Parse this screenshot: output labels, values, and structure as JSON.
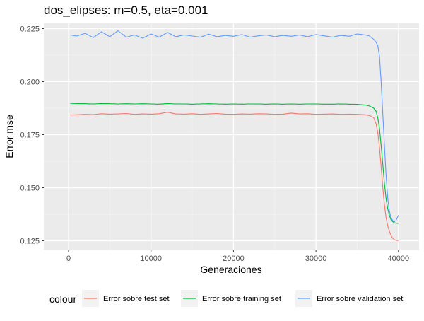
{
  "chart_data": {
    "type": "line",
    "title": "dos_elipses: m=0.5, eta=0.001",
    "xlabel": "Generaciones",
    "ylabel": "Error mse",
    "xlim": [
      -3000,
      42500
    ],
    "ylim": [
      0.1205,
      0.2275
    ],
    "x_ticks": [
      0,
      10000,
      20000,
      30000,
      40000
    ],
    "x_tick_labels": [
      "0",
      "10000",
      "20000",
      "30000",
      "40000"
    ],
    "y_ticks": [
      0.125,
      0.15,
      0.175,
      0.2,
      0.225
    ],
    "y_tick_labels": [
      "0.125",
      "0.150",
      "0.175",
      "0.200",
      "0.225"
    ],
    "grid": true,
    "legend_position": "bottom",
    "legend_title": "colour",
    "x": [
      200,
      1000,
      2000,
      3000,
      4000,
      5000,
      6000,
      7000,
      8000,
      9000,
      10000,
      11000,
      12000,
      13000,
      14000,
      15000,
      16000,
      17000,
      18000,
      19000,
      20000,
      21000,
      22000,
      23000,
      24000,
      25000,
      26000,
      27000,
      28000,
      29000,
      30000,
      31000,
      32000,
      33000,
      34000,
      35000,
      36000,
      36500,
      37000,
      37300,
      37500,
      37700,
      37900,
      38100,
      38300,
      38500,
      38700,
      38900,
      39100,
      39300,
      39500,
      39700,
      40000
    ],
    "series": [
      {
        "name": "Error sobre test set",
        "color": "#F8766D",
        "values": [
          0.1843,
          0.1844,
          0.1846,
          0.1845,
          0.1849,
          0.1847,
          0.1848,
          0.185,
          0.1846,
          0.1848,
          0.1847,
          0.1849,
          0.1856,
          0.1848,
          0.1847,
          0.1849,
          0.1846,
          0.1848,
          0.185,
          0.1847,
          0.1846,
          0.1848,
          0.1847,
          0.1849,
          0.1848,
          0.1846,
          0.1847,
          0.1852,
          0.1848,
          0.1849,
          0.1846,
          0.1847,
          0.1848,
          0.1846,
          0.1847,
          0.1846,
          0.1844,
          0.184,
          0.183,
          0.18,
          0.176,
          0.169,
          0.16,
          0.15,
          0.142,
          0.136,
          0.132,
          0.1295,
          0.1275,
          0.1262,
          0.1255,
          0.1252,
          0.1251
        ]
      },
      {
        "name": "Error sobre training set",
        "color": "#00BA38",
        "values": [
          0.1898,
          0.1897,
          0.1896,
          0.1895,
          0.1897,
          0.1896,
          0.1895,
          0.1896,
          0.1895,
          0.1896,
          0.1895,
          0.1894,
          0.1897,
          0.1895,
          0.1895,
          0.1894,
          0.1895,
          0.1896,
          0.1895,
          0.1894,
          0.1895,
          0.1894,
          0.1895,
          0.1895,
          0.1894,
          0.1895,
          0.1894,
          0.1895,
          0.1894,
          0.1895,
          0.1895,
          0.1894,
          0.1894,
          0.1895,
          0.1894,
          0.1893,
          0.189,
          0.1885,
          0.1875,
          0.186,
          0.183,
          0.178,
          0.17,
          0.161,
          0.152,
          0.145,
          0.14,
          0.137,
          0.135,
          0.134,
          0.1335,
          0.1333,
          0.1332
        ]
      },
      {
        "name": "Error sobre validation set",
        "color": "#619CFF",
        "values": [
          0.222,
          0.2215,
          0.2228,
          0.2208,
          0.2235,
          0.2212,
          0.224,
          0.221,
          0.222,
          0.2205,
          0.2225,
          0.221,
          0.2232,
          0.2212,
          0.222,
          0.2215,
          0.221,
          0.2224,
          0.2212,
          0.2218,
          0.2214,
          0.2222,
          0.221,
          0.2216,
          0.222,
          0.2212,
          0.2218,
          0.2214,
          0.222,
          0.2212,
          0.2222,
          0.2216,
          0.221,
          0.2218,
          0.2214,
          0.2225,
          0.222,
          0.2215,
          0.22,
          0.2185,
          0.217,
          0.212,
          0.2,
          0.185,
          0.17,
          0.156,
          0.145,
          0.139,
          0.136,
          0.1345,
          0.134,
          0.1345,
          0.137
        ]
      }
    ]
  }
}
